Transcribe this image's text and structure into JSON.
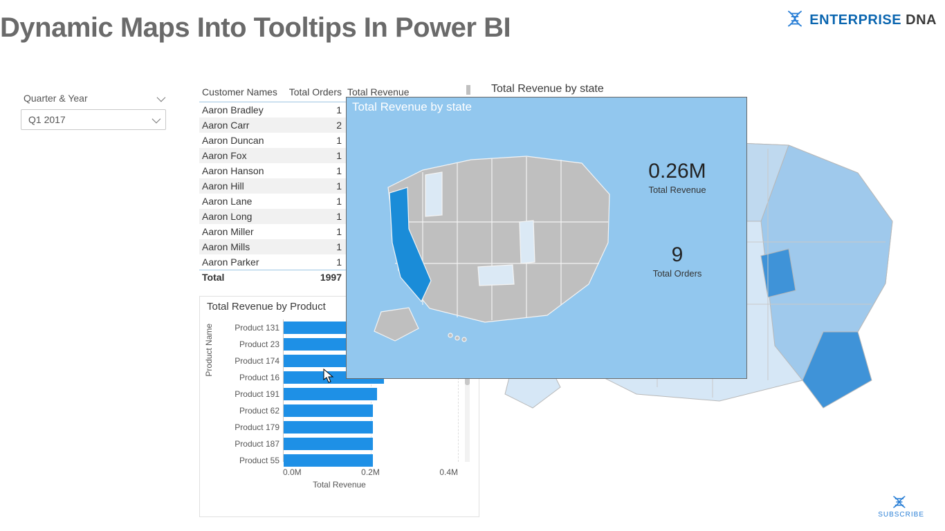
{
  "page": {
    "title": "Dynamic Maps Into Tooltips In Power BI"
  },
  "brand": {
    "word1": "ENTERPRISE",
    "word2": " DNA",
    "icon_color": "#2a7fd6",
    "subscribe_label": "SUBSCRIBE"
  },
  "slicer": {
    "label": "Quarter & Year",
    "selected": "Q1 2017"
  },
  "customer_table": {
    "columns": [
      "Customer Names",
      "Total Orders",
      "Total Revenue"
    ],
    "rows": [
      {
        "name": "Aaron Bradley",
        "orders": 1
      },
      {
        "name": "Aaron Carr",
        "orders": 2
      },
      {
        "name": "Aaron Duncan",
        "orders": 1
      },
      {
        "name": "Aaron Fox",
        "orders": 1
      },
      {
        "name": "Aaron Hanson",
        "orders": 1
      },
      {
        "name": "Aaron Hill",
        "orders": 1
      },
      {
        "name": "Aaron Lane",
        "orders": 1
      },
      {
        "name": "Aaron Long",
        "orders": 1
      },
      {
        "name": "Aaron Miller",
        "orders": 1
      },
      {
        "name": "Aaron Mills",
        "orders": 1
      },
      {
        "name": "Aaron Parker",
        "orders": 1
      }
    ],
    "total_label": "Total",
    "total_orders": 1997,
    "alt_row_bg": "#f1f1f1",
    "header_border": "#9bc4e2"
  },
  "revenue_by_product": {
    "type": "bar-horizontal",
    "title": "Total Revenue by Product",
    "y_axis_label": "Product Name",
    "x_axis_label": "Total Revenue",
    "x_ticks": [
      "0.0M",
      "0.2M",
      "0.4M"
    ],
    "xlim": [
      0,
      0.4
    ],
    "bar_color": "#1e90e6",
    "label_fontsize": 12,
    "highlighted_index": 2,
    "data": [
      {
        "label": "Product 131",
        "value": 0.245
      },
      {
        "label": "Product 23",
        "value": 0.23
      },
      {
        "label": "Product 174",
        "value": 0.26
      },
      {
        "label": "Product 16",
        "value": 0.23
      },
      {
        "label": "Product 191",
        "value": 0.215
      },
      {
        "label": "Product 62",
        "value": 0.205
      },
      {
        "label": "Product 179",
        "value": 0.205
      },
      {
        "label": "Product 187",
        "value": 0.205
      },
      {
        "label": "Product 55",
        "value": 0.205
      }
    ]
  },
  "background_map": {
    "title": "Total Revenue by state",
    "fill_base": "#d6e7f6",
    "fill_mid": "#9fc9ec",
    "fill_dark": "#3f93d8",
    "stroke": "#b8b8b8"
  },
  "tooltip": {
    "title": "Total Revenue by state",
    "bg": "#92c7ee",
    "border": "#6a6a6a",
    "map_land": "#bfbfbf",
    "map_stroke": "#f4f4f4",
    "map_highlight": "#1a8cd8",
    "map_light_highlight": "#dbe9f5",
    "kpi1_value": "0.26M",
    "kpi1_label": "Total Revenue",
    "kpi2_value": "9",
    "kpi2_label": "Total Orders"
  }
}
